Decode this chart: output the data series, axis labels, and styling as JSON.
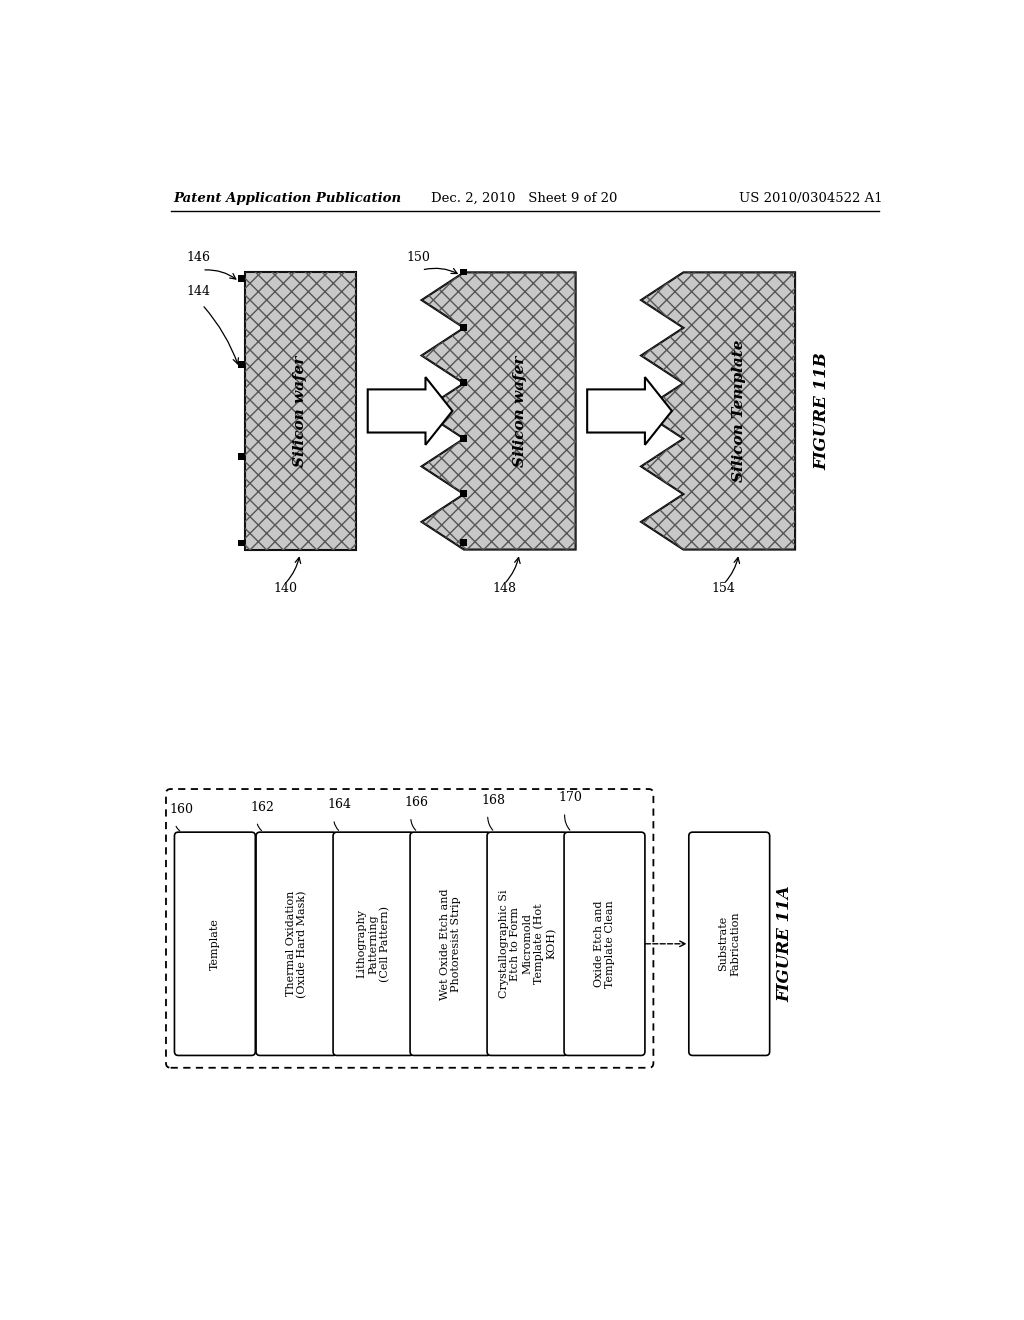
{
  "header_left": "Patent Application Publication",
  "header_mid": "Dec. 2, 2010   Sheet 9 of 20",
  "header_right": "US 2010/0304522 A1",
  "figure_11b_label": "FIGURE 11B",
  "figure_11a_label": "FIGURE 11A",
  "bg_color": "#ffffff",
  "wafer1_label": "Silicon wafer",
  "wafer2_label": "Silicon wafer",
  "wafer3_label": "Silicon Template",
  "num_140": "140",
  "num_144": "144",
  "num_146": "146",
  "num_148": "148",
  "num_150": "150",
  "num_154": "154",
  "flow_boxes": [
    {
      "text": "Template",
      "num": "160"
    },
    {
      "text": "Thermal Oxidation\n(Oxide Hard Mask)",
      "num": "162"
    },
    {
      "text": "Lithography\nPatterning\n(Cell Pattern)",
      "num": "164"
    },
    {
      "text": "Wet Oxide Etch and\nPhotoresist Strip",
      "num": "166"
    },
    {
      "text": "Crystallographic Si\nEtch to Form\nMicromold\nTemplate (Hot\nKOH)",
      "num": "168"
    },
    {
      "text": "Oxide Etch and\nTemplate Clean",
      "num": "170"
    },
    {
      "text": "Substrate\nFabrication",
      "num": ""
    }
  ]
}
